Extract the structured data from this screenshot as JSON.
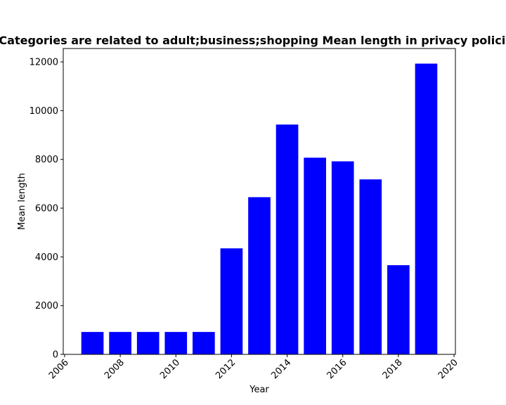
{
  "chart_data": {
    "type": "bar",
    "title": "Categories are related to adult;business;shopping Mean length in privacy policies",
    "xlabel": "Year",
    "ylabel": "Mean length",
    "x": [
      2007,
      2008,
      2009,
      2010,
      2011,
      2012,
      2013,
      2014,
      2015,
      2016,
      2017,
      2018,
      2019
    ],
    "values": [
      920,
      920,
      920,
      920,
      920,
      4350,
      6450,
      9430,
      8070,
      7920,
      7180,
      3660,
      11930
    ],
    "xlim": [
      2005.95,
      2020.05
    ],
    "ylim": [
      0,
      12550
    ],
    "xticks": [
      "2006",
      "2008",
      "2010",
      "2012",
      "2014",
      "2016",
      "2018",
      "2020"
    ],
    "yticks": [
      "0",
      "2000",
      "4000",
      "6000",
      "8000",
      "10000",
      "12000"
    ],
    "bar_color": "#0000ff",
    "grid": false,
    "legend": "none"
  }
}
